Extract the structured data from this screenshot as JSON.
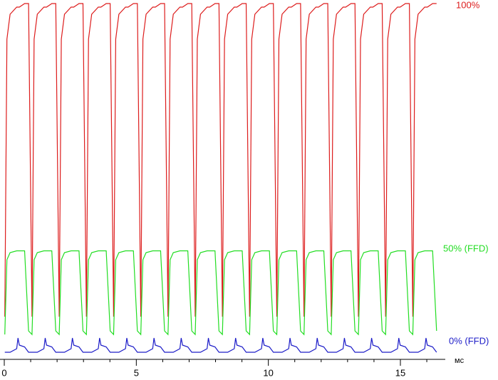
{
  "chart_data": {
    "type": "line",
    "x": [
      0.02,
      0.1,
      0.22,
      0.47,
      0.52,
      0.57,
      0.77,
      0.92,
      1.05,
      1.13,
      1.25,
      1.5,
      1.55,
      1.6,
      1.8,
      1.95,
      2.08,
      2.16,
      2.28,
      2.53,
      2.58,
      2.63,
      2.83,
      2.98,
      3.11,
      3.19,
      3.31,
      3.56,
      3.61,
      3.66,
      3.86,
      4.01,
      4.14,
      4.22,
      4.34,
      4.59,
      4.64,
      4.69,
      4.89,
      5.04,
      5.17,
      5.25,
      5.37,
      5.62,
      5.67,
      5.72,
      5.92,
      6.07,
      6.2,
      6.28,
      6.4,
      6.65,
      6.7,
      6.75,
      6.95,
      7.1,
      7.23,
      7.31,
      7.43,
      7.68,
      7.73,
      7.78,
      7.98,
      8.13,
      8.26,
      8.34,
      8.46,
      8.71,
      8.76,
      8.81,
      9.01,
      9.16,
      9.29,
      9.37,
      9.49,
      9.74,
      9.79,
      9.84,
      10.04,
      10.19,
      10.32,
      10.4,
      10.52,
      10.77,
      10.82,
      10.87,
      11.07,
      11.22,
      11.35,
      11.43,
      11.55,
      11.8,
      11.85,
      11.9,
      12.1,
      12.25,
      12.38,
      12.46,
      12.58,
      12.83,
      12.88,
      12.93,
      13.13,
      13.28,
      13.41,
      13.49,
      13.61,
      13.86,
      13.91,
      13.96,
      14.16,
      14.31,
      14.44,
      14.52,
      14.64,
      14.89,
      14.94,
      14.99,
      15.19,
      15.34,
      15.47,
      15.55,
      15.67,
      15.92,
      15.97,
      16.02,
      16.22,
      16.37
    ],
    "series": [
      {
        "name": "100%",
        "color": "#dd1c1c",
        "values": [
          12,
          90,
          97,
          99,
          99,
          99,
          100,
          100,
          12,
          90,
          97,
          99,
          99,
          99,
          100,
          100,
          12,
          90,
          97,
          99,
          99,
          99,
          100,
          100,
          12,
          90,
          97,
          99,
          99,
          99,
          100,
          100,
          12,
          90,
          97,
          99,
          99,
          99,
          100,
          100,
          12,
          90,
          97,
          99,
          99,
          99,
          100,
          100,
          12,
          90,
          97,
          99,
          99,
          99,
          100,
          100,
          12,
          90,
          97,
          99,
          99,
          99,
          100,
          100,
          12,
          90,
          97,
          99,
          99,
          99,
          100,
          100,
          12,
          90,
          97,
          99,
          99,
          99,
          100,
          100,
          12,
          90,
          97,
          99,
          99,
          99,
          100,
          100,
          12,
          90,
          97,
          99,
          99,
          99,
          100,
          100,
          12,
          90,
          97,
          99,
          99,
          99,
          100,
          100,
          12,
          90,
          97,
          99,
          99,
          99,
          100,
          100,
          12,
          90,
          97,
          99,
          99,
          99,
          100,
          100,
          12,
          90,
          97,
          99,
          99,
          99,
          100,
          100
        ]
      },
      {
        "name": "50% (FFD)",
        "color": "#22dd22",
        "values": [
          7,
          28,
          30,
          30.5,
          30.5,
          30.5,
          30.5,
          8,
          7,
          28,
          30,
          30.5,
          30.5,
          30.5,
          30.5,
          8,
          7,
          28,
          30,
          30.5,
          30.5,
          30.5,
          30.5,
          8,
          7,
          28,
          30,
          30.5,
          30.5,
          30.5,
          30.5,
          8,
          7,
          28,
          30,
          30.5,
          30.5,
          30.5,
          30.5,
          8,
          7,
          28,
          30,
          30.5,
          30.5,
          30.5,
          30.5,
          8,
          7,
          28,
          30,
          30.5,
          30.5,
          30.5,
          30.5,
          8,
          7,
          28,
          30,
          30.5,
          30.5,
          30.5,
          30.5,
          8,
          7,
          28,
          30,
          30.5,
          30.5,
          30.5,
          30.5,
          8,
          7,
          28,
          30,
          30.5,
          30.5,
          30.5,
          30.5,
          8,
          7,
          28,
          30,
          30.5,
          30.5,
          30.5,
          30.5,
          8,
          7,
          28,
          30,
          30.5,
          30.5,
          30.5,
          30.5,
          8,
          7,
          28,
          30,
          30.5,
          30.5,
          30.5,
          30.5,
          8,
          7,
          28,
          30,
          30.5,
          30.5,
          30.5,
          30.5,
          8,
          7,
          28,
          30,
          30.5,
          30.5,
          30.5,
          30.5,
          8,
          7,
          28,
          30,
          30.5,
          30.5,
          30.5,
          30.5,
          8
        ]
      },
      {
        "name": "0% (FFD)",
        "color": "#1c1cc8",
        "values": [
          2,
          2,
          2,
          3,
          6,
          4,
          3.5,
          2,
          2,
          2,
          2,
          3,
          6,
          4,
          3.5,
          2,
          2,
          2,
          2,
          3,
          6,
          4,
          3.5,
          2,
          2,
          2,
          2,
          3,
          6,
          4,
          3.5,
          2,
          2,
          2,
          2,
          3,
          6,
          4,
          3.5,
          2,
          2,
          2,
          2,
          3,
          6,
          4,
          3.5,
          2,
          2,
          2,
          2,
          3,
          6,
          4,
          3.5,
          2,
          2,
          2,
          2,
          3,
          6,
          4,
          3.5,
          2,
          2,
          2,
          2,
          3,
          6,
          4,
          3.5,
          2,
          2,
          2,
          2,
          3,
          6,
          4,
          3.5,
          2,
          2,
          2,
          2,
          3,
          6,
          4,
          3.5,
          2,
          2,
          2,
          2,
          3,
          6,
          4,
          3.5,
          2,
          2,
          2,
          2,
          3,
          6,
          4,
          3.5,
          2,
          2,
          2,
          2,
          3,
          6,
          4,
          3.5,
          2,
          2,
          2,
          2,
          3,
          6,
          4,
          3.5,
          2,
          2,
          2,
          2,
          3,
          6,
          4,
          3.5,
          2
        ]
      }
    ],
    "x_label": "мс",
    "xlim": [
      0,
      16.7
    ],
    "xticks": [
      0,
      5,
      10,
      15
    ],
    "xminorticks": [
      1,
      2,
      3,
      4,
      6,
      7,
      8,
      9,
      11,
      12,
      13,
      14,
      16
    ],
    "ylim": [
      0,
      100
    ]
  }
}
